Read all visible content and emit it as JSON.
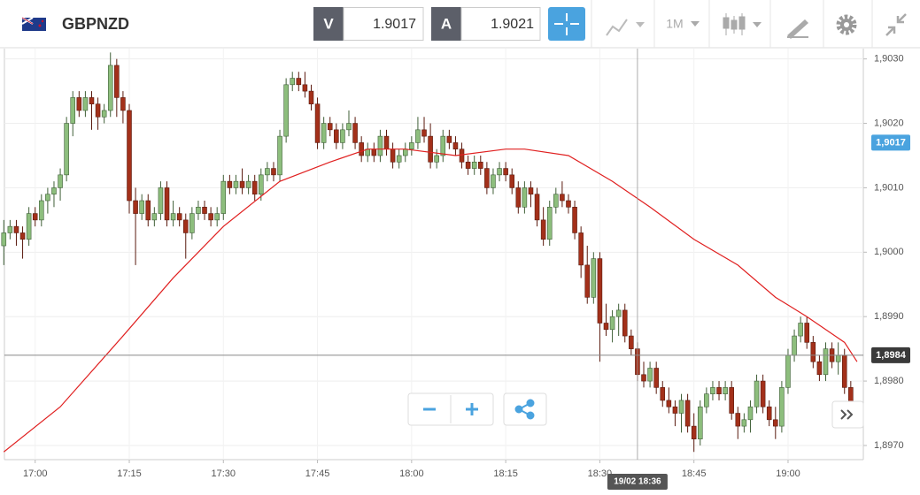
{
  "toolbar": {
    "symbol": "GBPNZD",
    "sell_label": "V",
    "sell_price": "1.9017",
    "buy_label": "A",
    "buy_price": "1.9021",
    "timeframe": "1M"
  },
  "chart_data": {
    "type": "candlestick",
    "x": [
      1015,
      1016,
      1017,
      1018,
      1019,
      1020,
      1021,
      1022,
      1023,
      1024,
      1025,
      1026,
      1027,
      1028,
      1029,
      1030,
      1031,
      1032,
      1033,
      1034,
      1035,
      1036,
      1037,
      1038,
      1039,
      1040,
      1041,
      1042,
      1043,
      1044,
      1045,
      1046,
      1047,
      1048,
      1049,
      1050,
      1051,
      1052,
      1053,
      1054,
      1055,
      1056,
      1057,
      1058,
      1059,
      1060,
      1061,
      1062,
      1063,
      1064,
      1065,
      1066,
      1067,
      1068,
      1069,
      1070,
      1071,
      1072,
      1073,
      1074,
      1075,
      1076,
      1077,
      1078,
      1079,
      1080,
      1081,
      1082,
      1083,
      1084,
      1085,
      1086,
      1087,
      1088,
      1089,
      1090,
      1091,
      1092,
      1093,
      1094,
      1095,
      1096,
      1097,
      1098,
      1099,
      1100,
      1101,
      1102,
      1103,
      1104,
      1105,
      1106,
      1107,
      1108,
      1109,
      1110,
      1111,
      1112,
      1113,
      1114,
      1115,
      1116,
      1117,
      1118,
      1119,
      1120,
      1121,
      1122,
      1123,
      1124,
      1125,
      1126,
      1127,
      1128,
      1129,
      1130,
      1131,
      1132,
      1133,
      1134,
      1135,
      1136,
      1137,
      1138,
      1139,
      1140,
      1141,
      1142,
      1143,
      1144,
      1145,
      1146,
      1147,
      1148,
      1149,
      1150
    ],
    "ohlc": [
      [
        1.9001,
        1.9005,
        1.8998,
        1.9003
      ],
      [
        1.9003,
        1.9005,
        1.9002,
        1.9004
      ],
      [
        1.9004,
        1.9005,
        1.9001,
        1.9003
      ],
      [
        1.9003,
        1.9004,
        1.8999,
        1.9002
      ],
      [
        1.9002,
        1.9007,
        1.9001,
        1.9006
      ],
      [
        1.9006,
        1.9007,
        1.9004,
        1.9005
      ],
      [
        1.9005,
        1.9009,
        1.9004,
        1.9008
      ],
      [
        1.9008,
        1.901,
        1.9006,
        1.9009
      ],
      [
        1.9009,
        1.9011,
        1.9007,
        1.901
      ],
      [
        1.901,
        1.9013,
        1.9008,
        1.9012
      ],
      [
        1.9012,
        1.9021,
        1.9011,
        1.902
      ],
      [
        1.902,
        1.9025,
        1.9018,
        1.9024
      ],
      [
        1.9024,
        1.9025,
        1.9021,
        1.9022
      ],
      [
        1.9022,
        1.9025,
        1.9021,
        1.9024
      ],
      [
        1.9024,
        1.9025,
        1.9019,
        1.9023
      ],
      [
        1.9023,
        1.9024,
        1.9019,
        1.9021
      ],
      [
        1.9021,
        1.9023,
        1.902,
        1.9022
      ],
      [
        1.9022,
        1.9031,
        1.9021,
        1.9029
      ],
      [
        1.9029,
        1.903,
        1.9021,
        1.9024
      ],
      [
        1.9024,
        1.9025,
        1.902,
        1.9022
      ],
      [
        1.9022,
        1.9023,
        1.9006,
        1.9008
      ],
      [
        1.9008,
        1.901,
        1.8998,
        1.9006
      ],
      [
        1.9006,
        1.9009,
        1.9005,
        1.9008
      ],
      [
        1.9008,
        1.9009,
        1.9004,
        1.9005
      ],
      [
        1.9005,
        1.9007,
        1.9004,
        1.9006
      ],
      [
        1.9006,
        1.9011,
        1.9005,
        1.901
      ],
      [
        1.901,
        1.9011,
        1.9004,
        1.9005
      ],
      [
        1.9005,
        1.9008,
        1.9004,
        1.9006
      ],
      [
        1.9006,
        1.9007,
        1.9004,
        1.9005
      ],
      [
        1.9005,
        1.9006,
        1.8999,
        1.9003
      ],
      [
        1.9003,
        1.9007,
        1.9002,
        1.9006
      ],
      [
        1.9006,
        1.9008,
        1.9005,
        1.9007
      ],
      [
        1.9007,
        1.9008,
        1.9005,
        1.9006
      ],
      [
        1.9006,
        1.9007,
        1.9004,
        1.9005
      ],
      [
        1.9005,
        1.9007,
        1.9004,
        1.9006
      ],
      [
        1.9006,
        1.9012,
        1.9005,
        1.9011
      ],
      [
        1.9011,
        1.9012,
        1.9009,
        1.901
      ],
      [
        1.901,
        1.9012,
        1.9009,
        1.9011
      ],
      [
        1.9011,
        1.9013,
        1.9009,
        1.901
      ],
      [
        1.901,
        1.9012,
        1.9009,
        1.9011
      ],
      [
        1.9011,
        1.9012,
        1.9008,
        1.9009
      ],
      [
        1.9009,
        1.9013,
        1.9008,
        1.9012
      ],
      [
        1.9012,
        1.9014,
        1.9011,
        1.9013
      ],
      [
        1.9013,
        1.9014,
        1.9011,
        1.9012
      ],
      [
        1.9012,
        1.9019,
        1.9011,
        1.9018
      ],
      [
        1.9018,
        1.9027,
        1.9017,
        1.9026
      ],
      [
        1.9026,
        1.9028,
        1.9025,
        1.9027
      ],
      [
        1.9027,
        1.9028,
        1.9025,
        1.9026
      ],
      [
        1.9026,
        1.9028,
        1.9024,
        1.9025
      ],
      [
        1.9025,
        1.9026,
        1.9022,
        1.9023
      ],
      [
        1.9023,
        1.9024,
        1.9016,
        1.9017
      ],
      [
        1.9017,
        1.9021,
        1.9016,
        1.902
      ],
      [
        1.902,
        1.9021,
        1.9018,
        1.9019
      ],
      [
        1.9019,
        1.902,
        1.9016,
        1.9017
      ],
      [
        1.9017,
        1.902,
        1.9016,
        1.9019
      ],
      [
        1.9019,
        1.9022,
        1.9018,
        1.902
      ],
      [
        1.902,
        1.9021,
        1.9016,
        1.9017
      ],
      [
        1.9017,
        1.9018,
        1.9014,
        1.9015
      ],
      [
        1.9015,
        1.9017,
        1.9014,
        1.9016
      ],
      [
        1.9016,
        1.9017,
        1.9014,
        1.9015
      ],
      [
        1.9015,
        1.9019,
        1.9014,
        1.9018
      ],
      [
        1.9018,
        1.9019,
        1.9015,
        1.9016
      ],
      [
        1.9016,
        1.9017,
        1.9013,
        1.9014
      ],
      [
        1.9014,
        1.9016,
        1.9013,
        1.9015
      ],
      [
        1.9015,
        1.9017,
        1.9014,
        1.9016
      ],
      [
        1.9016,
        1.9018,
        1.9015,
        1.9017
      ],
      [
        1.9017,
        1.9021,
        1.9016,
        1.9019
      ],
      [
        1.9019,
        1.9021,
        1.9017,
        1.9018
      ],
      [
        1.9018,
        1.902,
        1.9013,
        1.9014
      ],
      [
        1.9014,
        1.9016,
        1.9013,
        1.9015
      ],
      [
        1.9015,
        1.9019,
        1.9014,
        1.9018
      ],
      [
        1.9018,
        1.9019,
        1.9016,
        1.9017
      ],
      [
        1.9017,
        1.9018,
        1.9015,
        1.9016
      ],
      [
        1.9016,
        1.9017,
        1.9013,
        1.9014
      ],
      [
        1.9014,
        1.9015,
        1.9012,
        1.9013
      ],
      [
        1.9013,
        1.9015,
        1.9012,
        1.9014
      ],
      [
        1.9014,
        1.9015,
        1.9012,
        1.9013
      ],
      [
        1.9013,
        1.9014,
        1.9009,
        1.901
      ],
      [
        1.901,
        1.9013,
        1.9009,
        1.9012
      ],
      [
        1.9012,
        1.9014,
        1.9011,
        1.9013
      ],
      [
        1.9013,
        1.9014,
        1.9011,
        1.9012
      ],
      [
        1.9012,
        1.9013,
        1.9009,
        1.901
      ],
      [
        1.901,
        1.9011,
        1.9006,
        1.9007
      ],
      [
        1.9007,
        1.9011,
        1.9006,
        1.901
      ],
      [
        1.901,
        1.9011,
        1.9007,
        1.9009
      ],
      [
        1.9009,
        1.901,
        1.9004,
        1.9005
      ],
      [
        1.9005,
        1.9007,
        1.9001,
        1.9002
      ],
      [
        1.9002,
        1.9008,
        1.9001,
        1.9007
      ],
      [
        1.9007,
        1.901,
        1.9006,
        1.9009
      ],
      [
        1.9009,
        1.9011,
        1.9007,
        1.9008
      ],
      [
        1.9008,
        1.9009,
        1.9006,
        1.9007
      ],
      [
        1.9007,
        1.9008,
        1.9002,
        1.9003
      ],
      [
        1.9003,
        1.9004,
        1.8996,
        1.8998
      ],
      [
        1.8998,
        1.9001,
        1.8992,
        1.8993
      ],
      [
        1.8993,
        1.9,
        1.8992,
        1.8999
      ],
      [
        1.8999,
        1.9,
        1.8983,
        1.8989
      ],
      [
        1.8989,
        1.8992,
        1.8987,
        1.8988
      ],
      [
        1.8988,
        1.8991,
        1.8986,
        1.899
      ],
      [
        1.899,
        1.8992,
        1.8987,
        1.8991
      ],
      [
        1.8991,
        1.8992,
        1.8986,
        1.8987
      ],
      [
        1.8987,
        1.8988,
        1.8984,
        1.8985
      ],
      [
        1.8985,
        1.8986,
        1.898,
        1.8981
      ],
      [
        1.8981,
        1.8983,
        1.8979,
        1.898
      ],
      [
        1.898,
        1.8983,
        1.8979,
        1.8982
      ],
      [
        1.8982,
        1.8983,
        1.8978,
        1.8979
      ],
      [
        1.8979,
        1.898,
        1.8976,
        1.8977
      ],
      [
        1.8977,
        1.8979,
        1.8975,
        1.8976
      ],
      [
        1.8976,
        1.8977,
        1.8973,
        1.8975
      ],
      [
        1.8975,
        1.8978,
        1.8972,
        1.8977
      ],
      [
        1.8977,
        1.8978,
        1.8972,
        1.8973
      ],
      [
        1.8973,
        1.8975,
        1.8969,
        1.8971
      ],
      [
        1.8971,
        1.8977,
        1.897,
        1.8976
      ],
      [
        1.8976,
        1.8979,
        1.8975,
        1.8978
      ],
      [
        1.8978,
        1.898,
        1.8977,
        1.8979
      ],
      [
        1.8979,
        1.898,
        1.8977,
        1.8978
      ],
      [
        1.8978,
        1.898,
        1.8977,
        1.8979
      ],
      [
        1.8979,
        1.898,
        1.8974,
        1.8975
      ],
      [
        1.8975,
        1.8976,
        1.8971,
        1.8973
      ],
      [
        1.8973,
        1.8975,
        1.8972,
        1.8974
      ],
      [
        1.8974,
        1.8977,
        1.8972,
        1.8976
      ],
      [
        1.8976,
        1.8981,
        1.8975,
        1.898
      ],
      [
        1.898,
        1.8981,
        1.8975,
        1.8976
      ],
      [
        1.8976,
        1.8977,
        1.8973,
        1.8974
      ],
      [
        1.8974,
        1.8976,
        1.8971,
        1.8973
      ],
      [
        1.8973,
        1.898,
        1.8972,
        1.8979
      ],
      [
        1.8979,
        1.8985,
        1.8978,
        1.8984
      ],
      [
        1.8984,
        1.8988,
        1.8983,
        1.8987
      ],
      [
        1.8987,
        1.899,
        1.8986,
        1.8989
      ],
      [
        1.8989,
        1.899,
        1.8985,
        1.8986
      ],
      [
        1.8986,
        1.8987,
        1.8982,
        1.8983
      ],
      [
        1.8983,
        1.8984,
        1.898,
        1.8981
      ],
      [
        1.8981,
        1.8986,
        1.898,
        1.8985
      ],
      [
        1.8985,
        1.8986,
        1.8982,
        1.8983
      ],
      [
        1.8983,
        1.8986,
        1.8981,
        1.8984
      ],
      [
        1.8984,
        1.8985,
        1.8978,
        1.8979
      ],
      [
        1.8979,
        1.898,
        1.8974,
        1.8976
      ]
    ],
    "up_color": "#8dbe7d",
    "down_color": "#a3301a",
    "moving_average": {
      "color": "#e02020",
      "x": [
        1015,
        1024,
        1034,
        1042,
        1050,
        1059,
        1067,
        1073,
        1079,
        1087,
        1095,
        1098,
        1105,
        1112,
        1118,
        1125,
        1132,
        1138,
        1143,
        1149,
        1151
      ],
      "values": [
        1.8969,
        1.8976,
        1.8987,
        1.8996,
        1.9004,
        1.9011,
        1.9014,
        1.9016,
        1.9016,
        1.9015,
        1.9016,
        1.9016,
        1.9015,
        1.9011,
        1.9007,
        1.9002,
        1.8998,
        1.8993,
        1.899,
        1.8986,
        1.8983
      ]
    },
    "xlim": [
      1015.1,
      1152
    ],
    "ylim": [
      1.89678,
      1.90316
    ],
    "xticks": [
      {
        "value": 1020,
        "label": "17:00"
      },
      {
        "value": 1035,
        "label": "17:15"
      },
      {
        "value": 1050,
        "label": "17:30"
      },
      {
        "value": 1065,
        "label": "17:45"
      },
      {
        "value": 1080,
        "label": "18:00"
      },
      {
        "value": 1095,
        "label": "18:15"
      },
      {
        "value": 1110,
        "label": "18:30"
      },
      {
        "value": 1125,
        "label": "18:45"
      },
      {
        "value": 1140,
        "label": "19:00"
      }
    ],
    "yticks": [
      {
        "value": 1.897,
        "label": "1,8970"
      },
      {
        "value": 1.898,
        "label": "1,8980"
      },
      {
        "value": 1.899,
        "label": "1,8990"
      },
      {
        "value": 1.9,
        "label": "1,9000"
      },
      {
        "value": 1.901,
        "label": "1,9010"
      },
      {
        "value": 1.902,
        "label": "1,9020"
      },
      {
        "value": 1.903,
        "label": "1,9030"
      }
    ],
    "grid": true,
    "price_tags": [
      {
        "value": 1.9017,
        "label": "1,9017",
        "color": "#4aa3df"
      },
      {
        "value": 1.8984,
        "label": "1,8984",
        "color": "#3a3a3a"
      }
    ],
    "current_line": 1.8984,
    "crosshair": {
      "x": 1116,
      "label": "19/02 18:36"
    }
  }
}
